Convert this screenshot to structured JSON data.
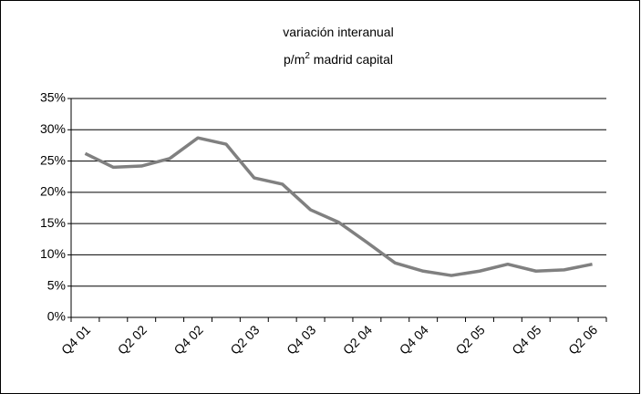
{
  "chart_data": {
    "type": "line",
    "title": "variación interanual",
    "subtitle": [
      "p/m",
      "2",
      " madrid capital"
    ],
    "categories": [
      "Q4 01",
      null,
      "Q2 02",
      null,
      "Q4 02",
      null,
      "Q2 03",
      null,
      "Q4 03",
      null,
      "Q2 04",
      null,
      "Q4 04",
      null,
      "Q2 05",
      null,
      "Q4 05",
      null,
      "Q2 06"
    ],
    "series": [
      {
        "color": "#808080",
        "values": [
          26.2,
          24.0,
          24.2,
          25.4,
          28.7,
          27.7,
          22.3,
          21.3,
          17.2,
          15.2,
          12.0,
          8.7,
          7.4,
          6.7,
          7.4,
          8.5,
          7.4,
          7.6,
          8.5
        ]
      }
    ],
    "ylim": [
      0,
      35
    ],
    "yticks": [
      {
        "value": 0,
        "label": "0%"
      },
      {
        "value": 5,
        "label": "5%"
      },
      {
        "value": 10,
        "label": "10%"
      },
      {
        "value": 15,
        "label": "15%"
      },
      {
        "value": 20,
        "label": "20%"
      },
      {
        "value": 25,
        "label": "25%"
      },
      {
        "value": 30,
        "label": "30%"
      },
      {
        "value": 35,
        "label": "35%"
      }
    ],
    "grid": true
  }
}
